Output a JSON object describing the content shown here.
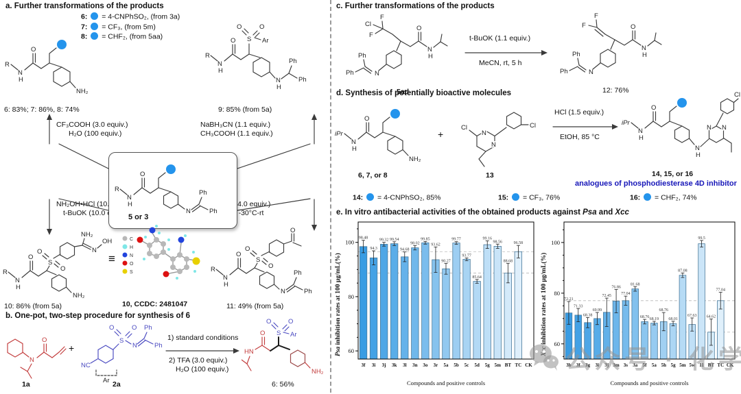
{
  "atoms": {
    "R": "R",
    "N": "N",
    "H": "H",
    "O": "O",
    "S": "S",
    "Ar": "Ar",
    "Ph": "Ph",
    "NH2": "NH₂",
    "NC": "NC",
    "Cl": "Cl",
    "F": "F",
    "OH": "OH",
    "HN": "HN",
    "iPr": "iPr",
    "plus": "+",
    "equiv": "≡"
  },
  "colors": {
    "blue_dot": "#2494ec",
    "note_blue": "#1616b8",
    "red_structure": "#c23b3b",
    "blue_structure": "#4848c0",
    "bar_stroke": "#4a7a9b"
  },
  "panel_a": {
    "title": "a. Further transformations of the products",
    "legend": [
      {
        "id": "6:",
        "rest": "= 4-CNPhSO₂, (from 3a)"
      },
      {
        "id": "7:",
        "rest": "= CF₃, (from 5m)"
      },
      {
        "id": "8:",
        "rest": "= CHF₂, (from 5aa)"
      }
    ],
    "yields": "6: 83%; 7: 86%, 8: 74%",
    "cap9": "9: 85% (from 5a)",
    "reag_tl1": "CF₃COOH (3.0 equiv.)",
    "reag_tl2": "H₂O (100 equiv.)",
    "reag_tr1": "NaBH₃CN (1.1 equiv.)",
    "reag_tr2": "CH₃COOH (1.1 equiv.)",
    "reag_bl1": "NH₂OH•HCl (10.0 equiv.)",
    "reag_bl2": "t-BuOK (10.0 equiv.)",
    "reag_br1": "MeLi (4.0 equiv.)",
    "reag_br2": "THF, N₂, -30°C-rt",
    "core_label": "5 or 3",
    "cap10": "10: 86% (from 5a)",
    "ccdc": "10, CCDC: 2481047",
    "atom_legend": [
      {
        "sym": "C",
        "color": "#b8b8b8"
      },
      {
        "sym": "H",
        "color": "#7fe7e7"
      },
      {
        "sym": "N",
        "color": "#2244dd"
      },
      {
        "sym": "O",
        "color": "#dd1111"
      },
      {
        "sym": "S",
        "color": "#e8d000"
      }
    ],
    "cap11": "11: 49% (from 5a)"
  },
  "panel_b": {
    "title": "b. One-pot, two-step procedure for synthesis of 6",
    "cond1": "1) standard conditions",
    "cond2": "2) TFA (3.0 equiv.)",
    "cond3": "H₂O (100 equiv.)",
    "cap_1a": "1a",
    "cap_2a": "2a",
    "cap_6": "6: 56%"
  },
  "panel_c": {
    "title": "c. Further transformations of the products",
    "cond1": "t-BuOK (1.1 equiv.)",
    "cond2": "MeCN, rt, 5 h",
    "cap_5ad": "5ad",
    "cap_12": "12: 76%"
  },
  "panel_d": {
    "title": "d. Synthesis of potentially bioactive molecules",
    "cond1": "HCl (1.5 equiv.)",
    "cond2": "EtOH, 85 °C",
    "cap_678": "6, 7, or 8",
    "cap_13": "13",
    "cap_141516": "14, 15, or 16",
    "note": "analogues of phosphodiesterase 4D inhibitor",
    "legend": [
      {
        "id": "14:",
        "rest": "= 4-CNPhSO₂, 85%"
      },
      {
        "id": "15:",
        "rest": "= CF₃, 76%"
      },
      {
        "id": "16:",
        "rest": "= CHF₂, 74%"
      }
    ]
  },
  "panel_e": {
    "title_pre": "e. In vitro antibacterial activities of the obtained products against ",
    "title_it1": "Psa",
    "title_mid": " and ",
    "title_it2": "Xcc"
  },
  "watermark": {
    "icon": "wechat-icon",
    "text": "公众号 · 化学缘"
  },
  "chart_data": [
    {
      "type": "bar",
      "ylabel_italic": "Psa",
      "ylabel_rest": " inhibition rates at 100  μg/mL(%)",
      "xlabel": "Compounds and positive controls",
      "categories": [
        "3f",
        "3i",
        "3j",
        "3k",
        "3l",
        "3n",
        "3o",
        "3r",
        "5a",
        "5b",
        "5c",
        "5d",
        "5g",
        "5m",
        "BT",
        "TC",
        "CK"
      ],
      "values": [
        98.48,
        94.3,
        99.32,
        99.54,
        94.68,
        98.02,
        99.85,
        93.62,
        90.27,
        99.77,
        93.77,
        85.64,
        99.16,
        98.56,
        88.68,
        96.58,
        null
      ],
      "errors": [
        2.3,
        2.6,
        0.7,
        0.7,
        1.8,
        0.8,
        0.5,
        4.7,
        2.0,
        0.5,
        0.5,
        0.7,
        1.4,
        0.8,
        3.6,
        2.3,
        null
      ],
      "ymin": 57,
      "ymax": 106.5,
      "yticks": [
        60,
        80,
        100
      ],
      "minor_step": 5,
      "ref_lines": [
        96.58,
        88.68
      ],
      "grid": "dashed-ref-only",
      "legend_position": "none",
      "bar_color_start": "#399CE3",
      "bar_color_end": "#EAF5FD"
    },
    {
      "type": "bar",
      "ylabel_italic": "Xcc",
      "ylabel_rest": " inhibition rates at 100  μg/mL(%)",
      "xlabel": "Compounds and positive controls",
      "categories": [
        "3b",
        "3f",
        "3g",
        "3i",
        "3j",
        "3m",
        "3s",
        "3a",
        "5f",
        "5a",
        "5h",
        "5g",
        "5m",
        "5w",
        "11",
        "BT",
        "TC",
        "CK"
      ],
      "values": [
        72.21,
        71.33,
        68.38,
        69.99,
        72.45,
        76.86,
        77.04,
        81.68,
        68.76,
        68.19,
        68.76,
        68.01,
        87.08,
        67.63,
        99.5,
        64.62,
        77.04,
        null
      ],
      "errors": [
        4.5,
        2.6,
        2.0,
        2.4,
        5.6,
        4.6,
        1.8,
        0.9,
        0.9,
        0.7,
        3.6,
        0.9,
        0.9,
        2.6,
        1.3,
        5.2,
        3.3,
        null
      ],
      "ymin": 54,
      "ymax": 107,
      "yticks": [
        60,
        80,
        100
      ],
      "minor_step": 5,
      "ref_lines": [
        77.04,
        64.62
      ],
      "grid": "dashed-ref-only",
      "legend_position": "none",
      "bar_color_start": "#399CE3",
      "bar_color_end": "#EAF5FD"
    }
  ]
}
